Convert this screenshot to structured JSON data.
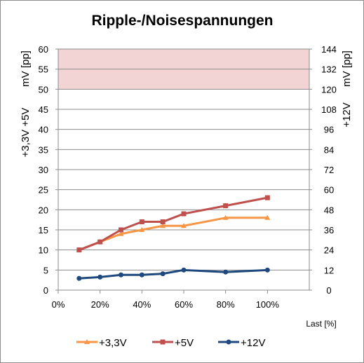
{
  "chart_data": {
    "type": "line",
    "title": "Ripple-/Noisespannungen",
    "xlabel": "Last [%]",
    "xlim": [
      0,
      120
    ],
    "x_ticks": [
      "0%",
      "20%",
      "40%",
      "60%",
      "80%",
      "100%"
    ],
    "y_left": {
      "label_unit": "mV [pp]",
      "label_rails": "+3,3V  +5V",
      "ylim": [
        0,
        60
      ],
      "ticks": [
        "0",
        "5",
        "10",
        "15",
        "20",
        "25",
        "30",
        "35",
        "40",
        "45",
        "50",
        "55",
        "60"
      ]
    },
    "y_right": {
      "label_unit": "mV [pp]",
      "label_rails": "+12V",
      "ylim": [
        0,
        144
      ],
      "ticks": [
        "0",
        "12",
        "24",
        "36",
        "48",
        "60",
        "72",
        "84",
        "96",
        "108",
        "120",
        "132",
        "144"
      ]
    },
    "limit_band": {
      "axis": "left",
      "from": 50,
      "to": 60,
      "color": "#f2d4d4"
    },
    "grid": true,
    "legend_position": "bottom",
    "series": [
      {
        "name": "+3,3V",
        "axis": "left",
        "color": "#f79646",
        "marker": "triangle",
        "x": [
          10,
          20,
          30,
          40,
          50,
          60,
          80,
          100
        ],
        "y": [
          10,
          12,
          14,
          15,
          16,
          16,
          18,
          18
        ]
      },
      {
        "name": "+5V",
        "axis": "left",
        "color": "#c0504d",
        "marker": "square",
        "x": [
          10,
          20,
          30,
          40,
          50,
          60,
          80,
          100
        ],
        "y": [
          10,
          12,
          15,
          17,
          17,
          19,
          21,
          23
        ]
      },
      {
        "name": "+12V",
        "axis": "right",
        "color": "#1f497d",
        "marker": "circle",
        "x": [
          10,
          20,
          30,
          40,
          50,
          60,
          80,
          100
        ],
        "y": [
          7,
          7.8,
          9.1,
          9.1,
          9.8,
          12,
          10.8,
          12
        ]
      }
    ]
  }
}
